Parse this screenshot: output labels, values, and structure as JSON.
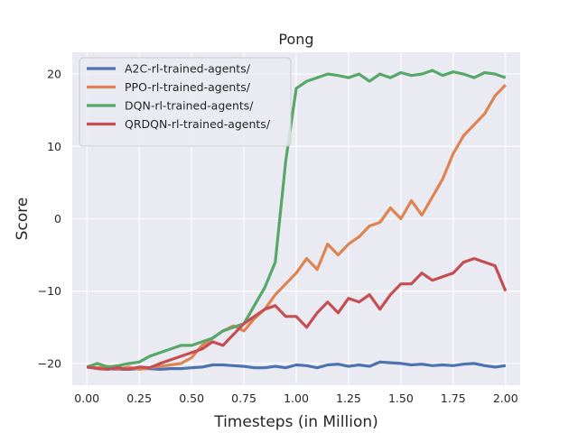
{
  "chart_data": {
    "type": "line",
    "title": "Pong",
    "xlabel": "Timesteps (in Million)",
    "ylabel": "Score",
    "xlim": [
      -0.07,
      2.07
    ],
    "ylim": [
      -23,
      23
    ],
    "xticks": [
      0.0,
      0.25,
      0.5,
      0.75,
      1.0,
      1.25,
      1.5,
      1.75,
      2.0
    ],
    "xtick_labels": [
      "0.00",
      "0.25",
      "0.50",
      "0.75",
      "1.00",
      "1.25",
      "1.50",
      "1.75",
      "2.00"
    ],
    "yticks": [
      -20,
      -10,
      0,
      10,
      20
    ],
    "ytick_labels": [
      "−20",
      "−10",
      "0",
      "10",
      "20"
    ],
    "grid": true,
    "legend_position": "top-left",
    "series": [
      {
        "name": "A2C-rl-trained-agents/",
        "color": "#4c72b0",
        "x": [
          0.0,
          0.05,
          0.1,
          0.15,
          0.2,
          0.25,
          0.3,
          0.35,
          0.4,
          0.45,
          0.5,
          0.55,
          0.6,
          0.65,
          0.7,
          0.75,
          0.8,
          0.85,
          0.9,
          0.95,
          1.0,
          1.05,
          1.1,
          1.15,
          1.2,
          1.25,
          1.3,
          1.35,
          1.4,
          1.45,
          1.5,
          1.55,
          1.6,
          1.65,
          1.7,
          1.75,
          1.8,
          1.85,
          1.9,
          1.95,
          2.0
        ],
        "y": [
          -20.5,
          -20.6,
          -20.7,
          -20.8,
          -20.8,
          -20.7,
          -20.7,
          -20.8,
          -20.7,
          -20.7,
          -20.6,
          -20.5,
          -20.2,
          -20.2,
          -20.3,
          -20.4,
          -20.6,
          -20.6,
          -20.4,
          -20.6,
          -20.2,
          -20.3,
          -20.6,
          -20.2,
          -20.1,
          -20.4,
          -20.2,
          -20.4,
          -19.8,
          -19.9,
          -20.0,
          -20.2,
          -20.1,
          -20.3,
          -20.2,
          -20.3,
          -20.1,
          -20.0,
          -20.3,
          -20.5,
          -20.3
        ]
      },
      {
        "name": "PPO-rl-trained-agents/",
        "color": "#dd8452",
        "x": [
          0.0,
          0.05,
          0.1,
          0.15,
          0.2,
          0.25,
          0.3,
          0.35,
          0.4,
          0.45,
          0.5,
          0.55,
          0.6,
          0.65,
          0.7,
          0.75,
          0.8,
          0.85,
          0.9,
          0.95,
          1.0,
          1.05,
          1.1,
          1.15,
          1.2,
          1.25,
          1.3,
          1.35,
          1.4,
          1.45,
          1.5,
          1.55,
          1.6,
          1.65,
          1.7,
          1.75,
          1.8,
          1.85,
          1.9,
          1.95,
          2.0
        ],
        "y": [
          -20.5,
          -20.6,
          -20.4,
          -20.8,
          -20.5,
          -20.8,
          -20.6,
          -20.4,
          -20.2,
          -20.0,
          -19.2,
          -17.5,
          -16.5,
          -15.5,
          -14.8,
          -15.5,
          -13.8,
          -12.5,
          -10.5,
          -9.0,
          -7.5,
          -5.5,
          -7.0,
          -3.5,
          -5.0,
          -3.5,
          -2.5,
          -1.0,
          -0.5,
          1.5,
          0.0,
          2.5,
          0.5,
          3.0,
          5.5,
          9.0,
          11.5,
          13.0,
          14.5,
          17.0,
          18.5
        ]
      },
      {
        "name": "DQN-rl-trained-agents/",
        "color": "#55a868",
        "x": [
          0.0,
          0.05,
          0.1,
          0.15,
          0.2,
          0.25,
          0.3,
          0.35,
          0.4,
          0.45,
          0.5,
          0.55,
          0.6,
          0.65,
          0.7,
          0.75,
          0.8,
          0.85,
          0.9,
          0.95,
          1.0,
          1.05,
          1.1,
          1.15,
          1.2,
          1.25,
          1.3,
          1.35,
          1.4,
          1.45,
          1.5,
          1.55,
          1.6,
          1.65,
          1.7,
          1.75,
          1.8,
          1.85,
          1.9,
          1.95,
          2.0
        ],
        "y": [
          -20.5,
          -20.0,
          -20.5,
          -20.3,
          -20.0,
          -19.8,
          -19.0,
          -18.5,
          -18.0,
          -17.5,
          -17.5,
          -17.0,
          -16.5,
          -15.5,
          -15.0,
          -14.5,
          -12.0,
          -9.5,
          -6.0,
          8.0,
          18.0,
          19.0,
          19.5,
          20.0,
          19.8,
          19.5,
          20.0,
          19.0,
          20.0,
          19.5,
          20.2,
          19.8,
          20.0,
          20.5,
          19.8,
          20.3,
          20.0,
          19.5,
          20.2,
          20.0,
          19.5
        ]
      },
      {
        "name": "QRDQN-rl-trained-agents/",
        "color": "#c44e52",
        "x": [
          0.0,
          0.05,
          0.1,
          0.15,
          0.2,
          0.25,
          0.3,
          0.35,
          0.4,
          0.45,
          0.5,
          0.55,
          0.6,
          0.65,
          0.7,
          0.75,
          0.8,
          0.85,
          0.9,
          0.95,
          1.0,
          1.05,
          1.1,
          1.15,
          1.2,
          1.25,
          1.3,
          1.35,
          1.4,
          1.45,
          1.5,
          1.55,
          1.6,
          1.65,
          1.7,
          1.75,
          1.8,
          1.85,
          1.9,
          1.95,
          2.0
        ],
        "y": [
          -20.5,
          -20.7,
          -20.8,
          -20.6,
          -20.8,
          -20.5,
          -20.6,
          -20.0,
          -19.5,
          -19.0,
          -18.5,
          -18.0,
          -17.0,
          -17.5,
          -16.0,
          -14.5,
          -13.5,
          -12.5,
          -12.0,
          -13.5,
          -13.5,
          -15.0,
          -13.0,
          -11.5,
          -13.0,
          -11.0,
          -11.5,
          -10.5,
          -12.5,
          -10.5,
          -9.0,
          -9.0,
          -7.5,
          -8.5,
          -8.0,
          -7.5,
          -6.0,
          -5.5,
          -6.0,
          -6.5,
          -10.0
        ]
      }
    ]
  }
}
